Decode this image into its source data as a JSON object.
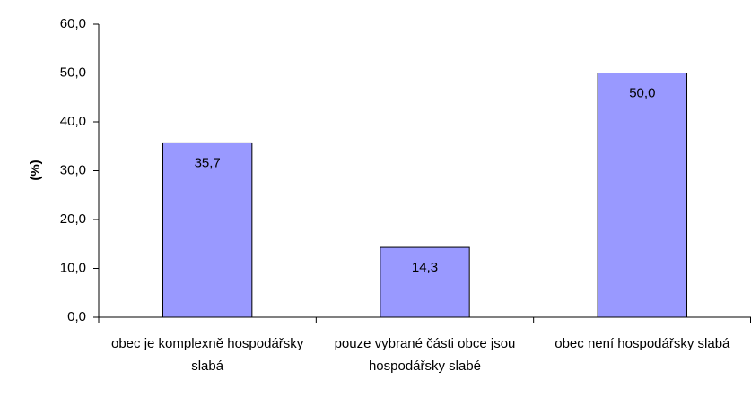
{
  "chart_data": {
    "type": "bar",
    "y_label": "(%)",
    "categories": [
      "obec je komplexně hospodářsky slabá",
      "pouze vybrané části obce jsou hospodářsky slabé",
      "obec není hospodářsky slabá"
    ],
    "values": [
      35.7,
      14.3,
      50.0
    ],
    "value_labels": [
      "35,7",
      "14,3",
      "50,0"
    ],
    "color": "#9999ff",
    "ylim": [
      0,
      60
    ],
    "yticks": [
      {
        "value": 0,
        "label": "0,0"
      },
      {
        "value": 10,
        "label": "10,0"
      },
      {
        "value": 20,
        "label": "20,0"
      },
      {
        "value": 30,
        "label": "30,0"
      },
      {
        "value": 40,
        "label": "40,0"
      },
      {
        "value": 50,
        "label": "50,0"
      },
      {
        "value": 60,
        "label": "60,0"
      }
    ],
    "grid": false
  }
}
